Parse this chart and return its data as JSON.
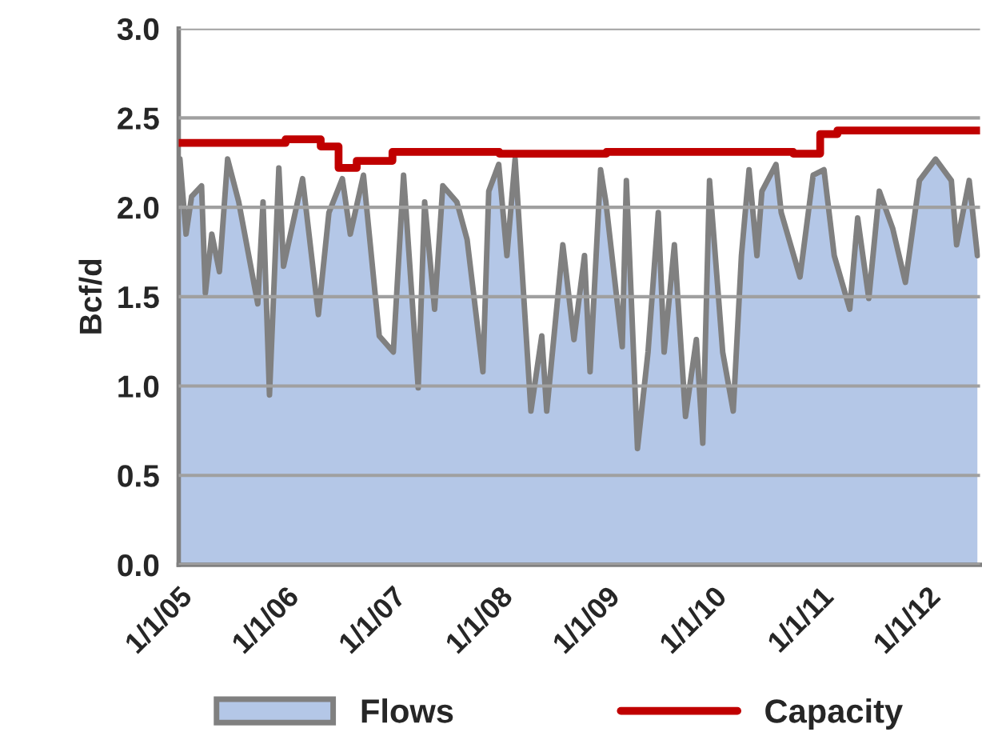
{
  "chart_data": {
    "type": "area",
    "ylabel": "Bcf/d",
    "ylim": [
      0,
      3
    ],
    "yticks": [
      {
        "value": 0,
        "label": "0.0"
      },
      {
        "value": 0.5,
        "label": "0.5"
      },
      {
        "value": 1,
        "label": "1.0"
      },
      {
        "value": 1.5,
        "label": "1.5"
      },
      {
        "value": 2,
        "label": "2.0"
      },
      {
        "value": 2.5,
        "label": "2.5"
      },
      {
        "value": 3,
        "label": "3.0"
      }
    ],
    "xlim": [
      "2005-01-01",
      "2012-06-30"
    ],
    "xticks": [
      {
        "value": "2005-01-01",
        "label": "1/1/05"
      },
      {
        "value": "2006-01-01",
        "label": "1/1/06"
      },
      {
        "value": "2007-01-01",
        "label": "1/1/07"
      },
      {
        "value": "2008-01-01",
        "label": "1/1/08"
      },
      {
        "value": "2009-01-01",
        "label": "1/1/09"
      },
      {
        "value": "2010-01-01",
        "label": "1/1/10"
      },
      {
        "value": "2011-01-01",
        "label": "1/1/11"
      },
      {
        "value": "2012-01-01",
        "label": "1/1/12"
      }
    ],
    "grid": "y",
    "legend": "bottom",
    "series": [
      {
        "name": "Flows",
        "color": "#808080",
        "x": [
          "2005-01-05",
          "2005-01-26",
          "2005-02-14",
          "2005-03-20",
          "2005-04-02",
          "2005-04-24",
          "2005-05-20",
          "2005-06-17",
          "2005-07-25",
          "2005-09-28",
          "2005-10-16",
          "2005-11-07",
          "2005-12-09",
          "2005-12-25",
          "2006-02-28",
          "2006-04-23",
          "2006-05-29",
          "2006-07-14",
          "2006-08-10",
          "2006-09-24",
          "2006-11-17",
          "2007-01-04",
          "2007-02-08",
          "2007-03-30",
          "2007-04-21",
          "2007-05-25",
          "2007-06-22",
          "2007-08-09",
          "2007-09-13",
          "2007-11-06",
          "2007-11-26",
          "2007-12-30",
          "2008-01-27",
          "2008-02-24",
          "2008-04-18",
          "2008-05-25",
          "2008-06-11",
          "2008-08-05",
          "2008-09-12",
          "2008-10-18",
          "2008-11-06",
          "2008-12-12",
          "2008-12-30",
          "2009-02-24",
          "2009-03-10",
          "2009-04-17",
          "2009-05-23",
          "2009-06-27",
          "2009-07-17",
          "2009-08-21",
          "2009-09-28",
          "2009-11-04",
          "2009-11-26",
          "2009-12-19",
          "2010-02-02",
          "2010-03-10",
          "2010-04-07",
          "2010-05-03",
          "2010-05-30",
          "2010-06-16",
          "2010-08-03",
          "2010-08-21",
          "2010-10-24",
          "2010-12-08",
          "2011-01-14",
          "2011-02-18",
          "2011-04-12",
          "2011-05-09",
          "2011-06-16",
          "2011-07-22",
          "2011-09-06",
          "2011-10-19",
          "2011-12-06",
          "2012-01-30",
          "2012-03-24",
          "2012-04-11",
          "2012-05-24",
          "2012-06-21"
        ],
        "values": [
          2.27,
          1.85,
          2.06,
          2.12,
          1.52,
          1.85,
          1.64,
          2.27,
          2.03,
          1.46,
          2.03,
          0.95,
          2.22,
          1.67,
          2.16,
          1.4,
          1.97,
          2.16,
          1.85,
          2.18,
          1.28,
          1.19,
          2.18,
          0.99,
          2.03,
          1.43,
          2.12,
          2.03,
          1.82,
          1.08,
          2.09,
          2.24,
          1.73,
          2.27,
          0.86,
          1.28,
          0.86,
          1.79,
          1.26,
          1.73,
          1.08,
          2.21,
          2.03,
          1.22,
          2.15,
          0.65,
          1.19,
          1.97,
          1.19,
          1.79,
          0.83,
          1.26,
          0.68,
          2.15,
          1.19,
          0.86,
          1.73,
          2.21,
          1.73,
          2.09,
          2.24,
          1.97,
          1.61,
          2.18,
          2.21,
          1.73,
          1.43,
          1.94,
          1.49,
          2.09,
          1.88,
          1.58,
          2.15,
          2.27,
          2.15,
          1.79,
          2.15,
          1.73
        ]
      },
      {
        "name": "Capacity",
        "type": "step",
        "color": "#c00000",
        "x": [
          "2005-01-01",
          "2006-01-01",
          "2006-05-01",
          "2006-07-01",
          "2006-09-01",
          "2007-01-01",
          "2008-01-01",
          "2009-01-01",
          "2010-10-01",
          "2011-01-01",
          "2011-03-01",
          "2012-06-30"
        ],
        "values": [
          2.36,
          2.38,
          2.34,
          2.22,
          2.26,
          2.31,
          2.3,
          2.31,
          2.3,
          2.41,
          2.43,
          2.43
        ]
      }
    ]
  }
}
